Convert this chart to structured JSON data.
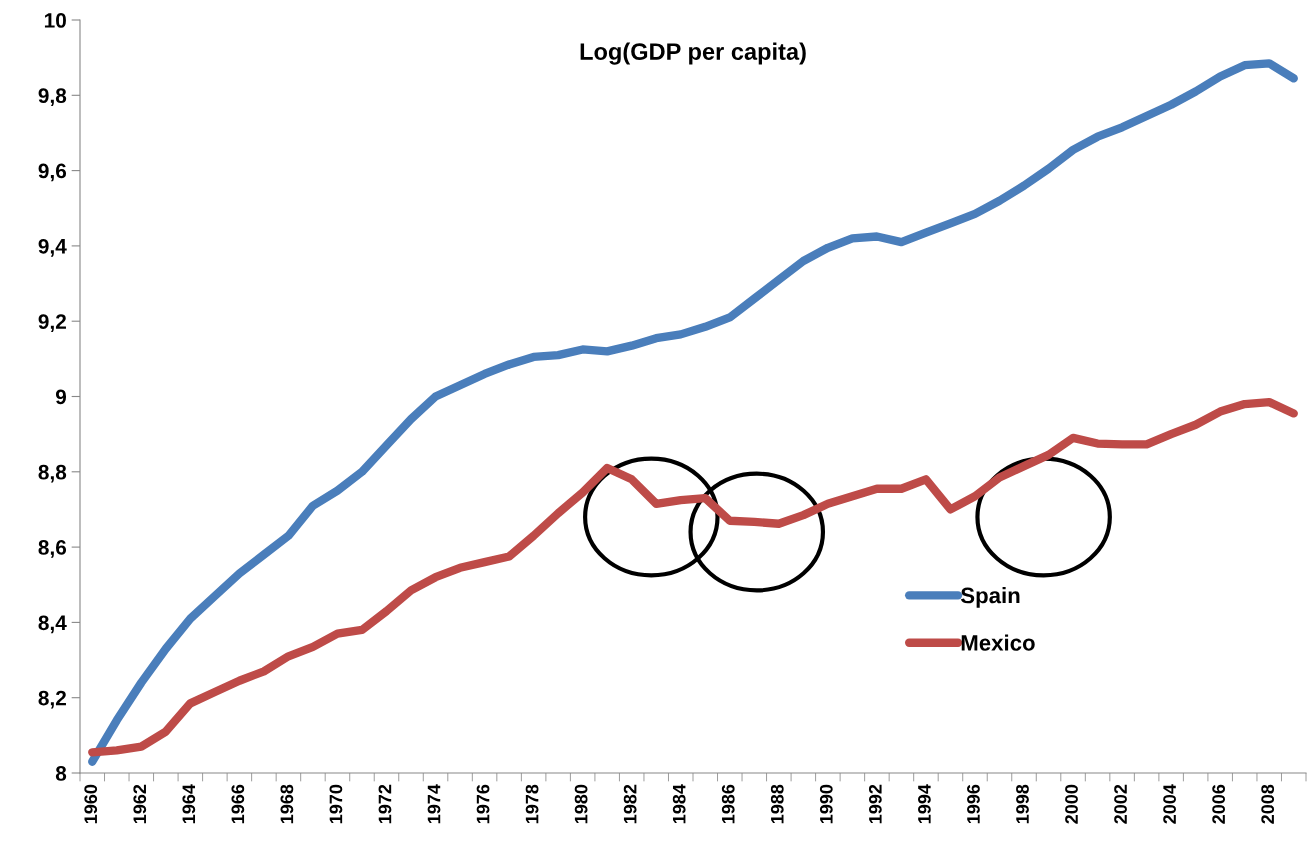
{
  "chart_data": {
    "type": "line",
    "title": "Log(GDP per capita)",
    "categories": [
      "1960",
      null,
      "1962",
      null,
      "1964",
      null,
      "1966",
      null,
      "1968",
      null,
      "1970",
      null,
      "1972",
      null,
      "1974",
      null,
      "1976",
      null,
      "1978",
      null,
      "1980",
      null,
      "1982",
      null,
      "1984",
      null,
      "1986",
      null,
      "1988",
      null,
      "1990",
      null,
      "1992",
      null,
      "1994",
      null,
      "1996",
      null,
      "1998",
      null,
      "2000",
      null,
      "2002",
      null,
      "2004",
      null,
      "2006",
      null,
      "2008",
      null
    ],
    "series": [
      {
        "name": "Spain",
        "color": "#4a7ebb",
        "values": [
          8.03,
          8.14,
          8.24,
          8.33,
          8.41,
          8.47,
          8.53,
          8.58,
          8.63,
          8.71,
          8.75,
          8.8,
          8.87,
          8.94,
          9.0,
          9.03,
          9.06,
          9.085,
          9.105,
          9.11,
          9.125,
          9.12,
          9.135,
          9.155,
          9.165,
          9.185,
          9.21,
          9.26,
          9.31,
          9.36,
          9.395,
          9.42,
          9.425,
          9.41,
          9.435,
          9.46,
          9.485,
          9.52,
          9.56,
          9.605,
          9.655,
          9.69,
          9.715,
          9.745,
          9.775,
          9.81,
          9.85,
          9.88,
          9.885,
          9.845
        ]
      },
      {
        "name": "Mexico",
        "color": "#be4b48",
        "values": [
          8.055,
          8.06,
          8.07,
          8.11,
          8.185,
          8.215,
          8.245,
          8.27,
          8.31,
          8.335,
          8.37,
          8.38,
          8.43,
          8.485,
          8.52,
          8.545,
          8.56,
          8.575,
          8.63,
          8.69,
          8.745,
          8.81,
          8.78,
          8.715,
          8.725,
          8.73,
          8.67,
          8.667,
          8.662,
          8.685,
          8.715,
          8.735,
          8.755,
          8.755,
          8.78,
          8.7,
          8.735,
          8.785,
          8.815,
          8.845,
          8.89,
          8.875,
          8.873,
          8.873,
          8.9,
          8.925,
          8.96,
          8.98,
          8.985,
          8.955
        ]
      }
    ],
    "ylim": [
      8,
      10
    ],
    "yticks": [
      8,
      {
        "value": 8.2,
        "label": "8,2"
      },
      {
        "value": 8.4,
        "label": "8,4"
      },
      {
        "value": 8.6,
        "label": "8,6"
      },
      {
        "value": 8.8,
        "label": "8,8"
      },
      9,
      {
        "value": 9.2,
        "label": "9,2"
      },
      {
        "value": 9.4,
        "label": "9,4"
      },
      {
        "value": 9.6,
        "label": "9,6"
      },
      {
        "value": 9.8,
        "label": "9,8"
      },
      10
    ],
    "grid": false,
    "legend": "right",
    "marker": "none",
    "line_style": "solid"
  }
}
